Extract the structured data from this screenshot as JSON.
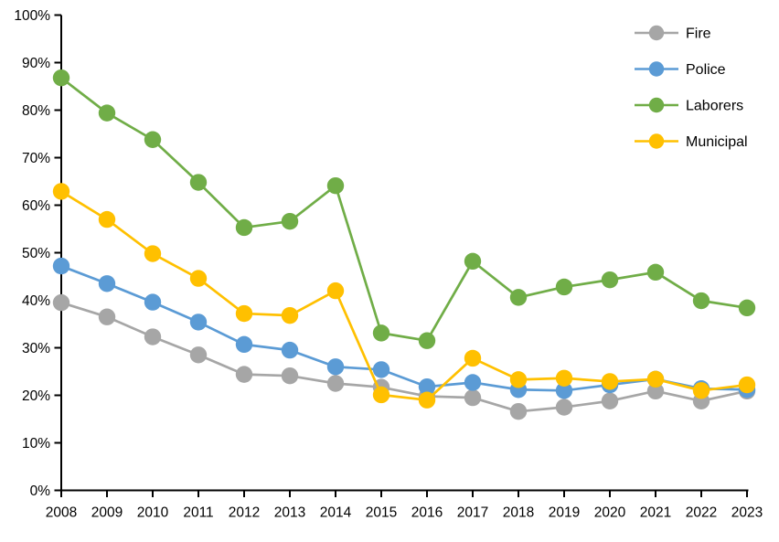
{
  "chart_data": {
    "type": "line",
    "title": "",
    "xlabel": "",
    "ylabel": "",
    "categories": [
      "2008",
      "2009",
      "2010",
      "2011",
      "2012",
      "2013",
      "2014",
      "2015",
      "2016",
      "2017",
      "2018",
      "2019",
      "2020",
      "2021",
      "2022",
      "2023"
    ],
    "series": [
      {
        "name": "Fire",
        "color": "#a6a6a6",
        "values": [
          39.5,
          36.5,
          32.3,
          28.5,
          24.4,
          24.1,
          22.5,
          21.7,
          19.8,
          19.5,
          16.6,
          17.5,
          18.8,
          20.9,
          18.8,
          20.9
        ]
      },
      {
        "name": "Police",
        "color": "#5b9bd5",
        "values": [
          47.2,
          43.5,
          39.6,
          35.4,
          30.7,
          29.5,
          26.0,
          25.4,
          21.8,
          22.7,
          21.2,
          21.0,
          22.2,
          23.4,
          21.4,
          21.2
        ]
      },
      {
        "name": "Laborers",
        "color": "#70ad47",
        "values": [
          86.8,
          79.4,
          73.8,
          64.8,
          55.3,
          56.6,
          64.1,
          33.1,
          31.5,
          48.2,
          40.6,
          42.8,
          44.3,
          45.9,
          39.9,
          38.4
        ]
      },
      {
        "name": "Municipal",
        "color": "#ffc000",
        "values": [
          62.9,
          57.0,
          49.8,
          44.6,
          37.2,
          36.8,
          42.0,
          20.1,
          19.0,
          27.8,
          23.3,
          23.6,
          22.9,
          23.4,
          21.0,
          22.2
        ]
      }
    ],
    "ylim": [
      0,
      100
    ],
    "ytick_step": 10,
    "ytick_labels": [
      "0%",
      "10%",
      "20%",
      "30%",
      "40%",
      "50%",
      "60%",
      "70%",
      "80%",
      "90%",
      "100%"
    ],
    "grid": false,
    "legend_position": "top-right",
    "legend_entries": [
      "Fire",
      "Police",
      "Laborers",
      "Municipal"
    ],
    "axis_color": "#000000",
    "background_color": "#ffffff",
    "marker_style": "filled-circle"
  }
}
